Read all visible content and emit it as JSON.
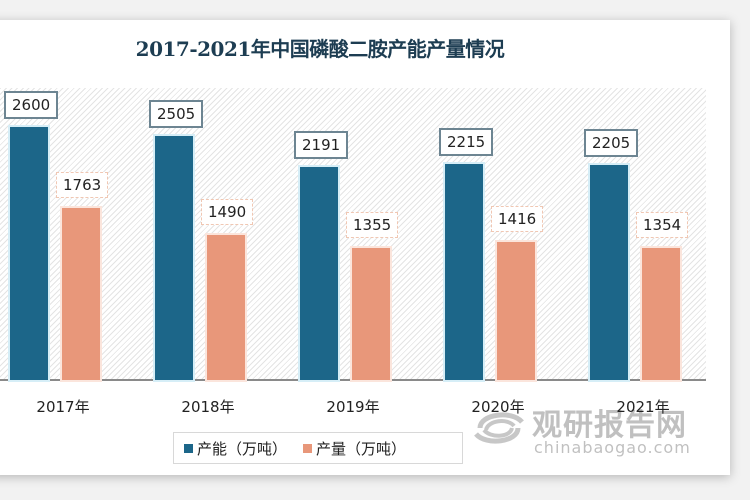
{
  "chart_data": {
    "type": "bar",
    "title": "2017-2021年中国磷酸二胺产能产量情况",
    "categories": [
      "2017年",
      "2018年",
      "2019年",
      "2020年",
      "2021年"
    ],
    "series": [
      {
        "name": "产能（万吨）",
        "color": "#1c6689",
        "values": [
          2600,
          2505,
          2191,
          2215,
          2205
        ]
      },
      {
        "name": "产量（万吨）",
        "color": "#e8977a",
        "values": [
          1763,
          1490,
          1355,
          1416,
          1354
        ]
      }
    ],
    "xlabel": "",
    "ylabel": "",
    "ylim": [
      0,
      2600
    ],
    "grid": false,
    "legend_position": "bottom",
    "data_labels": true
  },
  "labels": {
    "cap": [
      "2600",
      "2505",
      "2191",
      "2215",
      "2205"
    ],
    "out": [
      "1763",
      "1490",
      "1355",
      "1416",
      "1354"
    ]
  },
  "legend": {
    "cap": "产能（万吨）",
    "out": "产量（万吨）"
  },
  "watermark": {
    "cn": "观研报告网",
    "en": "chinabaogao.com"
  }
}
